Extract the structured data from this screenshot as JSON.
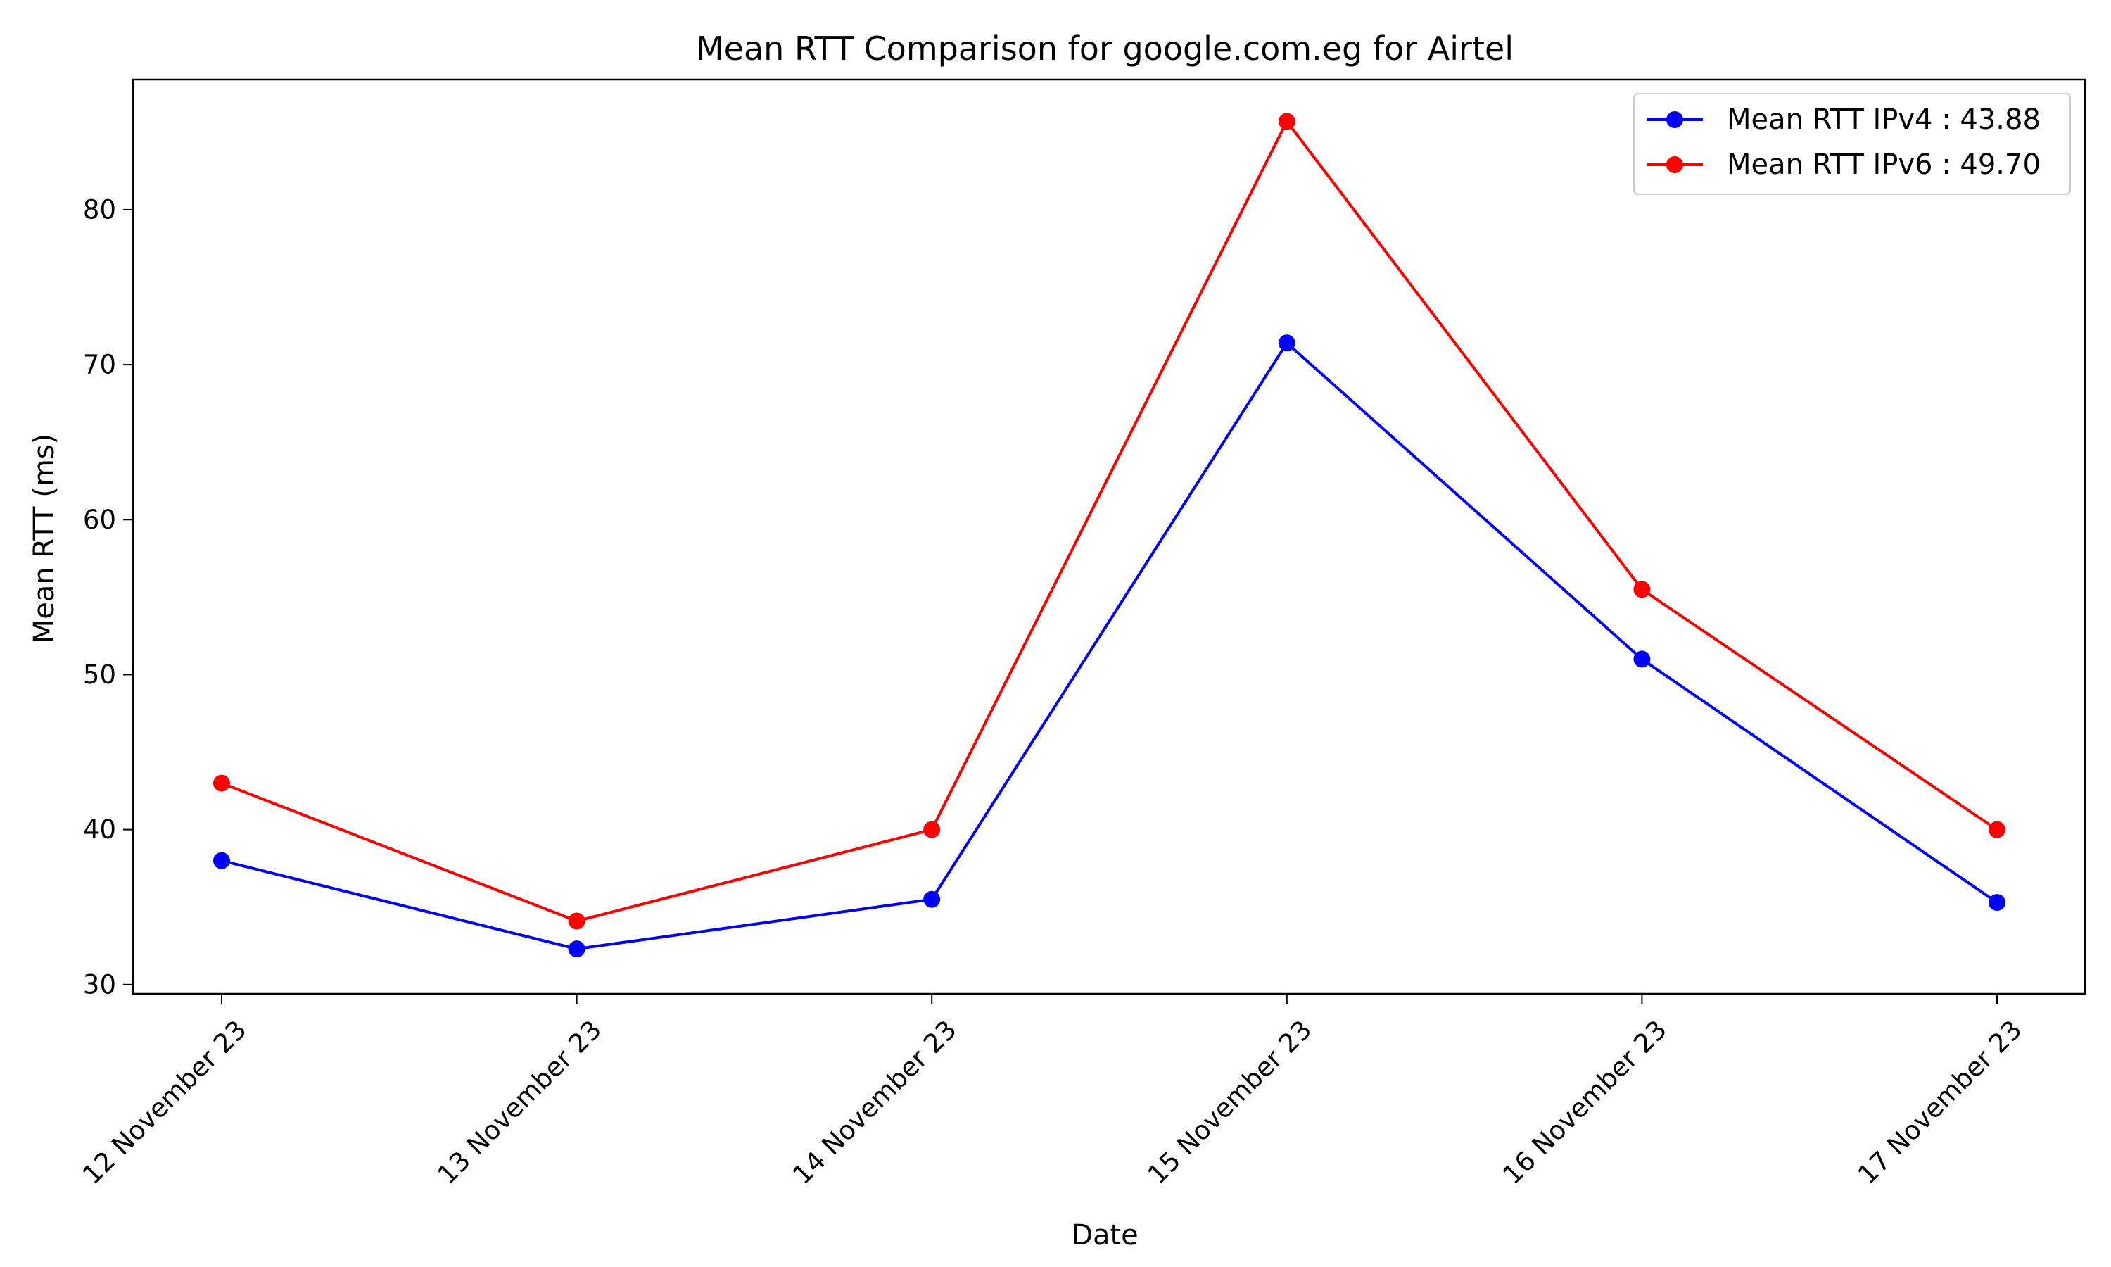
{
  "chart_data": {
    "type": "line",
    "title": "Mean RTT Comparison for google.com.eg for Airtel",
    "xlabel": "Date",
    "ylabel": "Mean RTT (ms)",
    "categories": [
      "12 November 23",
      "13 November 23",
      "14 November 23",
      "15 November 23",
      "16 November 23",
      "17 November 23"
    ],
    "y_ticks": [
      "30",
      "40",
      "50",
      "60",
      "70",
      "80"
    ],
    "ylim": [
      29.4,
      88.4
    ],
    "grid": false,
    "legend_position": "top-right",
    "series": [
      {
        "name": "Mean RTT IPv4 : 43.88",
        "color": "#0000ff",
        "marker": "circle",
        "values": [
          38.0,
          32.3,
          35.5,
          71.4,
          51.0,
          35.3
        ]
      },
      {
        "name": "Mean RTT IPv6 : 49.70",
        "color": "#ff0000",
        "marker": "circle",
        "values": [
          43.0,
          34.1,
          40.0,
          85.7,
          55.5,
          40.0
        ]
      }
    ]
  }
}
